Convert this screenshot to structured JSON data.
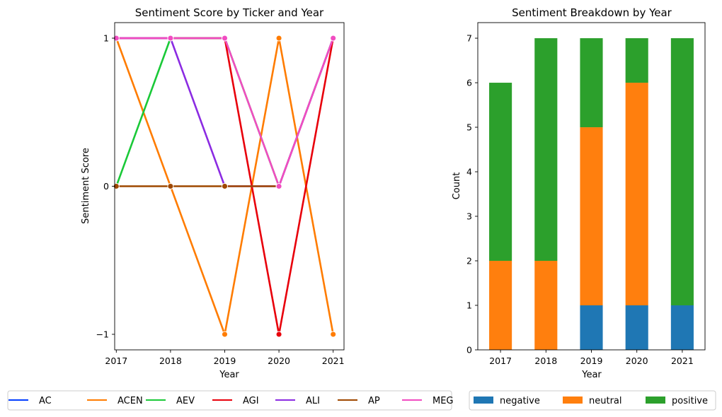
{
  "chart_data": [
    {
      "type": "line",
      "title": "Sentiment Score by Ticker and Year",
      "xlabel": "Year",
      "ylabel": "Sentiment Score",
      "x": [
        2017,
        2018,
        2019,
        2020,
        2021
      ],
      "x_ticks": [
        "2017",
        "2018",
        "2019",
        "2020",
        "2021"
      ],
      "y_ticks": [
        -1,
        0,
        1
      ],
      "y_tick_labels": [
        "−1",
        "0",
        "1"
      ],
      "xlim": [
        2016.97,
        2021.2
      ],
      "ylim": [
        -1.105,
        1.105
      ],
      "markers": true,
      "grid": false,
      "legend": "bottom, outside plot, 7 columns",
      "series": [
        {
          "name": "AC",
          "color": "#023eff",
          "values": [
            1,
            1,
            1,
            null,
            null
          ]
        },
        {
          "name": "ACEN",
          "color": "#ff7c00",
          "values": [
            1,
            0,
            -1,
            1,
            -1
          ]
        },
        {
          "name": "AEV",
          "color": "#1ac938",
          "values": [
            0,
            1,
            1,
            0,
            1
          ]
        },
        {
          "name": "AGI",
          "color": "#e8000b",
          "values": [
            1,
            1,
            1,
            -1,
            1
          ]
        },
        {
          "name": "ALI",
          "color": "#8b2be2",
          "values": [
            1,
            1,
            0,
            0,
            1
          ]
        },
        {
          "name": "AP",
          "color": "#9f4800",
          "values": [
            0,
            0,
            0,
            0,
            null
          ]
        },
        {
          "name": "MEG",
          "color": "#f14cc1",
          "values": [
            1,
            1,
            1,
            0,
            1
          ]
        }
      ]
    },
    {
      "type": "bar",
      "stacked": true,
      "title": "Sentiment Breakdown by Year",
      "xlabel": "Year",
      "ylabel": "Count",
      "categories": [
        "2017",
        "2018",
        "2019",
        "2020",
        "2021"
      ],
      "y_ticks": [
        0,
        1,
        2,
        3,
        4,
        5,
        6,
        7
      ],
      "ylim": [
        0,
        7.35
      ],
      "grid": false,
      "legend": "bottom, outside plot, 3 columns",
      "series": [
        {
          "name": "negative",
          "color": "#1f77b4",
          "values": [
            0,
            0,
            1,
            1,
            1
          ]
        },
        {
          "name": "neutral",
          "color": "#ff7f0e",
          "values": [
            2,
            2,
            4,
            5,
            0
          ]
        },
        {
          "name": "positive",
          "color": "#2ca02c",
          "values": [
            4,
            5,
            2,
            1,
            6
          ]
        }
      ]
    }
  ]
}
